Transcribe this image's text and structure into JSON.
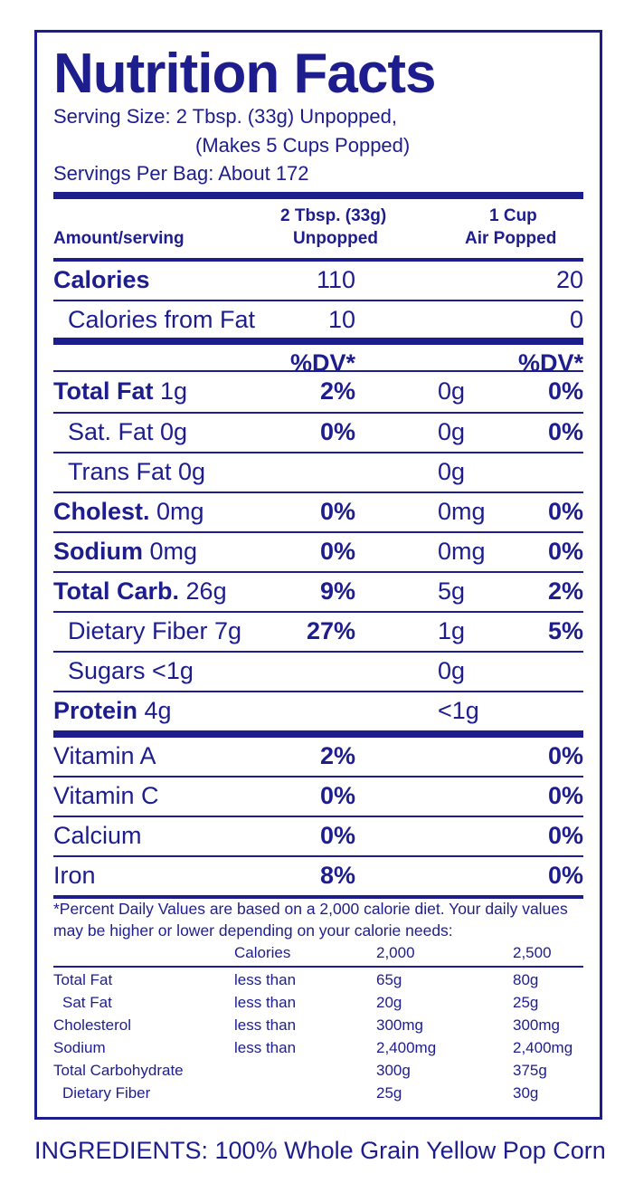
{
  "title": "Nutrition Facts",
  "serving_size": "Serving Size: 2 Tbsp. (33g) Unpopped,",
  "serving_size_cont": "(Makes 5 Cups Popped)",
  "servings_per": "Servings Per Bag: About 172",
  "header": {
    "amount": "Amount/serving",
    "col1_line1": "2 Tbsp. (33g)",
    "col1_line2": "Unpopped",
    "col2_line1": "1 Cup",
    "col2_line2": "Air Popped"
  },
  "calories": {
    "label": "Calories",
    "v1": "110",
    "v2": "20"
  },
  "calories_fat": {
    "label": "Calories from Fat",
    "v1": "10",
    "v2": "0"
  },
  "dv_header": "%DV*",
  "nutrients": [
    {
      "label": "Total Fat",
      "amt": "1g",
      "dv1": "2%",
      "amt2": "0g",
      "dv2": "0%"
    },
    {
      "label": "Sat. Fat 0g",
      "dv1": "0%",
      "amt2": "0g",
      "dv2": "0%"
    },
    {
      "label": "Trans Fat 0g",
      "amt2": "0g"
    },
    {
      "label": "Cholest.",
      "amt": "0mg",
      "dv1": "0%",
      "amt2": "0mg",
      "dv2": "0%"
    },
    {
      "label": "Sodium",
      "amt": "0mg",
      "dv1": "0%",
      "amt2": "0mg",
      "dv2": "0%"
    },
    {
      "label": "Total Carb.",
      "amt": "26g",
      "dv1": "9%",
      "amt2": "5g",
      "dv2": "2%"
    },
    {
      "label": "Dietary Fiber 7g",
      "dv1": "27%",
      "amt2": "1g",
      "dv2": "5%"
    },
    {
      "label": "Sugars <1g",
      "amt2": "0g"
    },
    {
      "label": "Protein",
      "amt": "4g",
      "amt2": "<1g"
    }
  ],
  "vitamins": [
    {
      "label": "Vitamin A",
      "dv1": "2%",
      "dv2": "0%"
    },
    {
      "label": "Vitamin C",
      "dv1": "0%",
      "dv2": "0%"
    },
    {
      "label": "Calcium",
      "dv1": "0%",
      "dv2": "0%"
    },
    {
      "label": "Iron",
      "dv1": "8%",
      "dv2": "0%"
    }
  ],
  "footnote_line1": "*Percent Daily Values are based on a 2,000 calorie diet.  Your daily values",
  "footnote_line2": "may be higher or lower depending on your calorie needs:",
  "footer_table": {
    "header": [
      "Calories",
      "2,000",
      "2,500"
    ],
    "rows": [
      [
        "Total Fat",
        "less than",
        "65g",
        "80g"
      ],
      [
        "Sat Fat",
        "less than",
        "20g",
        "25g"
      ],
      [
        "Cholesterol",
        "less than",
        "300mg",
        "300mg"
      ],
      [
        "Sodium",
        "less than",
        "2,400mg",
        "2,400mg"
      ],
      [
        "Total Carbohydrate",
        "",
        "300g",
        "375g"
      ],
      [
        "Dietary Fiber",
        "",
        "25g",
        "30g"
      ]
    ]
  },
  "ingredients": "INGREDIENTS: 100% Whole Grain Yellow Pop Corn",
  "colors": {
    "ink": "#1d1d8e",
    "background": "#ffffff"
  }
}
